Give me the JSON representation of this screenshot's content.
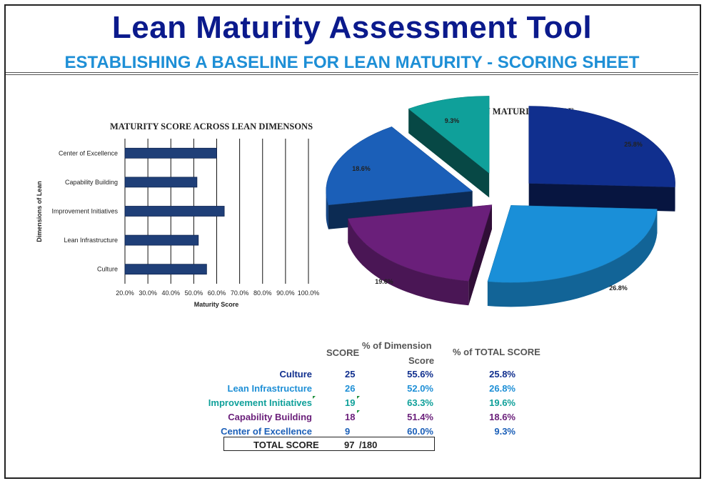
{
  "header": {
    "title": "Lean Maturity Assessment Tool",
    "subtitle": "ESTABLISHING A BASELINE FOR LEAN MATURITY - SCORING SHEET"
  },
  "colors": {
    "title": "#0b1a8c",
    "subtitle": "#1e8fd6",
    "bar": "#1f3f78"
  },
  "chart_data": [
    {
      "type": "bar",
      "orientation": "horizontal",
      "title": "MATURITY SCORE ACROSS LEAN DIMENSONS",
      "xlabel": "Maturity Score",
      "ylabel": "Dimensions of Lean",
      "categories": [
        "Center of Excellence",
        "Capability Building",
        "Improvement Initiatives",
        "Lean Infrastructure",
        "Culture"
      ],
      "values": [
        60.0,
        51.4,
        63.3,
        52.0,
        55.6
      ],
      "xlim": [
        20,
        100
      ],
      "xticks": [
        "20.0%",
        "30.0%",
        "40.0%",
        "50.0%",
        "60.0%",
        "70.0%",
        "80.0%",
        "90.0%",
        "100.0%"
      ],
      "grid": "vertical"
    },
    {
      "type": "pie",
      "style": "3d-exploded",
      "title": "LEAN MATURITY SCORE",
      "slices": [
        {
          "label": "25.8%",
          "value": 25.8,
          "color": "#102f8e"
        },
        {
          "label": "26.8%",
          "value": 26.8,
          "color": "#1a8fd8"
        },
        {
          "label": "19.6%",
          "value": 19.6,
          "color": "#6a1f7a"
        },
        {
          "label": "18.6%",
          "value": 18.6,
          "color": "#1b5fb8"
        },
        {
          "label": "9.3%",
          "value": 9.3,
          "color": "#0fa09a"
        }
      ]
    }
  ],
  "table": {
    "headers": {
      "score": "SCORE",
      "pct_dim_line1": "% of Dimension",
      "pct_dim_line2": "Score",
      "pct_total": "% of TOTAL SCORE"
    },
    "rows": [
      {
        "name": "Culture",
        "score": "25",
        "pct_dim": "55.6%",
        "pct_total": "25.8%",
        "color": "#102f8e"
      },
      {
        "name": "Lean Infrastructure",
        "score": "26",
        "pct_dim": "52.0%",
        "pct_total": "26.8%",
        "color": "#1e8fd6"
      },
      {
        "name": "Improvement Initiatives",
        "score": "19",
        "pct_dim": "63.3%",
        "pct_total": "19.6%",
        "color": "#0fa09a"
      },
      {
        "name": "Capability Building",
        "score": "18",
        "pct_dim": "51.4%",
        "pct_total": "18.6%",
        "color": "#6a1f7a"
      },
      {
        "name": "Center of Excellence",
        "score": "9",
        "pct_dim": "60.0%",
        "pct_total": "9.3%",
        "color": "#1b5fb8"
      }
    ],
    "total": {
      "label": "TOTAL SCORE",
      "value": "97",
      "max": "/180"
    }
  }
}
